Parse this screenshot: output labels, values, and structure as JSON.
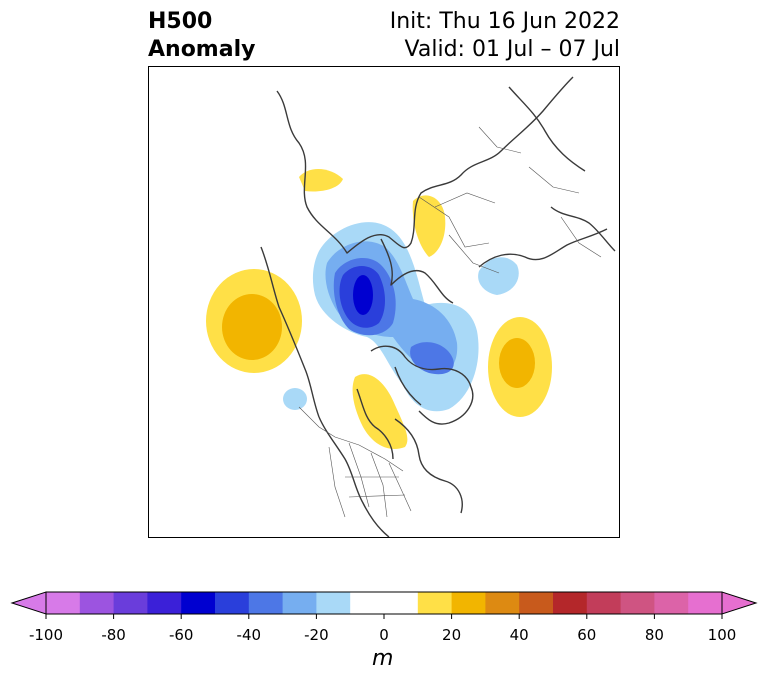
{
  "header": {
    "title_line1": "H500",
    "title_line2": "Anomaly",
    "init_label": "Init: Thu 16 Jun 2022",
    "valid_label": "Valid: 01 Jul – 07 Jul"
  },
  "colorbar": {
    "unit": "m",
    "tick_labels": [
      "-100",
      "-80",
      "-60",
      "-40",
      "-20",
      "0",
      "20",
      "40",
      "60",
      "80",
      "100"
    ],
    "levels": [
      -100,
      -90,
      -80,
      -70,
      -60,
      -50,
      -40,
      -30,
      -20,
      -10,
      10,
      20,
      30,
      40,
      50,
      60,
      70,
      80,
      90,
      100
    ],
    "colors": [
      "#d77ae8",
      "#9c54e0",
      "#6a3ddb",
      "#3b20d8",
      "#0000d0",
      "#2a3fdb",
      "#4d77e6",
      "#76aef0",
      "#a9d9f7",
      "#ffffff",
      "#ffe047",
      "#f2b500",
      "#dd8a12",
      "#c85a1c",
      "#b4272a",
      "#c23d5a",
      "#cf5482",
      "#dc63a8",
      "#e66fd0"
    ],
    "under_color": "#d77ae8",
    "over_color": "#e66fd0"
  }
}
